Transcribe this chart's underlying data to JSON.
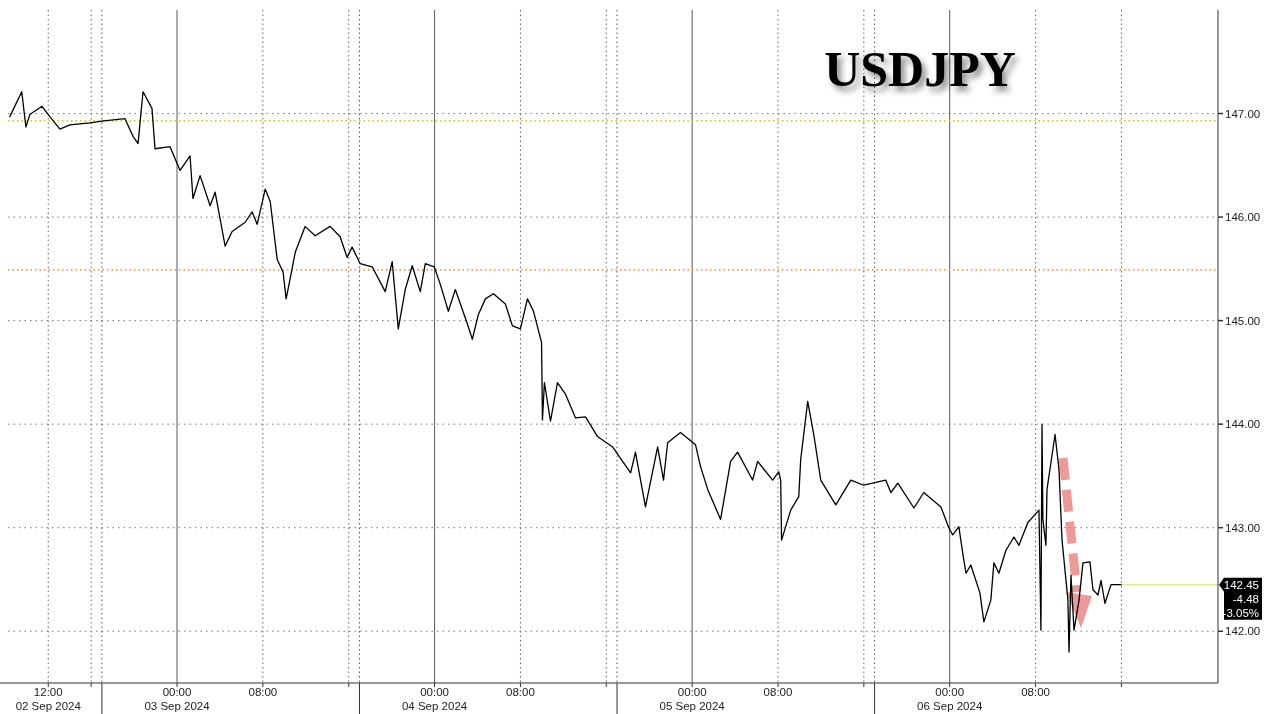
{
  "chart_data": {
    "type": "line",
    "title": "USDJPY",
    "x": [
      "2024-09-02T08:25",
      "2024-09-02T09:32",
      "2024-09-02T09:55",
      "2024-09-02T10:17",
      "2024-09-02T11:25",
      "2024-09-02T12:09",
      "2024-09-02T13:05",
      "2024-09-02T14:01",
      "2024-09-02T15:53",
      "2024-09-02T17:11",
      "2024-09-02T19:09",
      "2024-09-02T19:54",
      "2024-09-02T20:22",
      "2024-09-02T20:50",
      "2024-09-02T21:40",
      "2024-09-02T21:57",
      "2024-09-02T23:21",
      "2024-09-03T00:17",
      "2024-09-03T01:13",
      "2024-09-03T01:29",
      "2024-09-03T02:09",
      "2024-09-03T03:05",
      "2024-09-03T03:33",
      "2024-09-03T04:01",
      "2024-09-03T04:29",
      "2024-09-03T05:08",
      "2024-09-03T06:21",
      "2024-09-03T07:00",
      "2024-09-03T07:28",
      "2024-09-03T08:13",
      "2024-09-03T08:41",
      "2024-09-03T09:20",
      "2024-09-03T09:53",
      "2024-09-03T10:10",
      "2024-09-03T10:32",
      "2024-09-03T11:01",
      "2024-09-03T11:56",
      "2024-09-03T12:52",
      "2024-09-03T14:16",
      "2024-09-03T15:12",
      "2024-09-03T15:51",
      "2024-09-03T16:19",
      "2024-09-03T17:04",
      "2024-09-03T18:11",
      "2024-09-03T19:24",
      "2024-09-03T20:03",
      "2024-09-03T20:37",
      "2024-09-03T21:16",
      "2024-09-03T21:55",
      "2024-09-03T22:40",
      "2024-09-03T23:08",
      "2024-09-03T23:58",
      "2024-09-04T00:32",
      "2024-09-04T01:17",
      "2024-09-04T01:56",
      "2024-09-04T03:03",
      "2024-09-04T03:31",
      "2024-09-04T04:05",
      "2024-09-04T04:44",
      "2024-09-04T05:29",
      "2024-09-04T06:36",
      "2024-09-04T07:15",
      "2024-09-04T08:00",
      "2024-09-04T08:39",
      "2024-09-04T09:13",
      "2024-09-04T09:58",
      "2024-09-04T10:03",
      "2024-09-04T10:14",
      "2024-09-04T10:48",
      "2024-09-04T11:27",
      "2024-09-04T12:12",
      "2024-09-04T13:08",
      "2024-09-04T14:04",
      "2024-09-04T15:11",
      "2024-09-04T16:35",
      "2024-09-04T18:16",
      "2024-09-04T18:43",
      "2024-09-04T19:39",
      "2024-09-04T20:47",
      "2024-09-04T21:20",
      "2024-09-04T21:43",
      "2024-09-04T22:55",
      "2024-09-05T00:19",
      "2024-09-05T00:47",
      "2024-09-05T01:27",
      "2024-09-05T02:39",
      "2024-09-05T03:35",
      "2024-09-05T04:14",
      "2024-09-05T05:38",
      "2024-09-05T06:06",
      "2024-09-05T07:30",
      "2024-09-05T08:04",
      "2024-09-05T08:15",
      "2024-09-05T08:20",
      "2024-09-05T09:11",
      "2024-09-05T09:56",
      "2024-09-05T10:07",
      "2024-09-05T10:46",
      "2024-09-05T11:20",
      "2024-09-05T11:59",
      "2024-09-05T13:23",
      "2024-09-05T14:47",
      "2024-09-05T15:59",
      "2024-09-05T18:02",
      "2024-09-05T18:31",
      "2024-09-05T19:10",
      "2024-09-05T20:40",
      "2024-09-05T21:35",
      "2024-09-05T23:11",
      "2024-09-05T23:55",
      "2024-09-06T00:17",
      "2024-09-06T00:51",
      "2024-09-06T01:14",
      "2024-09-06T01:31",
      "2024-09-06T01:58",
      "2024-09-06T02:49",
      "2024-09-06T03:11",
      "2024-09-06T03:50",
      "2024-09-06T04:07",
      "2024-09-06T04:35",
      "2024-09-06T05:14",
      "2024-09-06T05:59",
      "2024-09-06T06:27",
      "2024-09-06T07:17",
      "2024-09-06T08:19",
      "2024-09-06T08:30",
      "2024-09-06T08:36",
      "2024-09-06T08:41",
      "2024-09-06T08:58",
      "2024-09-06T09:04",
      "2024-09-06T09:49",
      "2024-09-06T10:11",
      "2024-09-06T10:28",
      "2024-09-06T11:01",
      "2024-09-06T11:07",
      "2024-09-06T11:18",
      "2024-09-06T11:35",
      "2024-09-06T12:03",
      "2024-09-06T12:25",
      "2024-09-06T13:04",
      "2024-09-06T13:21",
      "2024-09-06T13:49",
      "2024-09-06T14:06",
      "2024-09-06T14:28",
      "2024-09-06T15:02",
      "2024-09-06T15:58"
    ],
    "series": [
      {
        "color": "#000000",
        "values": [
          146.97,
          147.21,
          146.87,
          146.99,
          147.07,
          146.97,
          146.85,
          146.89,
          146.91,
          146.93,
          146.95,
          146.78,
          146.71,
          147.21,
          147.05,
          146.66,
          146.68,
          146.45,
          146.59,
          146.18,
          146.4,
          146.11,
          146.24,
          145.98,
          145.72,
          145.86,
          145.95,
          146.05,
          145.93,
          146.27,
          146.15,
          145.59,
          145.47,
          145.21,
          145.4,
          145.66,
          145.91,
          145.82,
          145.91,
          145.81,
          145.61,
          145.71,
          145.55,
          145.52,
          145.28,
          145.57,
          144.92,
          145.3,
          145.53,
          145.28,
          145.55,
          145.52,
          145.35,
          145.09,
          145.3,
          144.97,
          144.82,
          145.06,
          145.21,
          145.26,
          145.16,
          144.95,
          144.92,
          145.21,
          145.09,
          144.79,
          144.04,
          144.4,
          144.03,
          144.4,
          144.29,
          144.06,
          144.07,
          143.88,
          143.78,
          143.53,
          143.73,
          143.2,
          143.78,
          143.46,
          143.82,
          143.92,
          143.8,
          143.59,
          143.37,
          143.08,
          143.64,
          143.73,
          143.46,
          143.64,
          143.46,
          143.54,
          143.46,
          142.88,
          143.17,
          143.3,
          143.66,
          144.22,
          143.9,
          143.46,
          143.22,
          143.46,
          143.41,
          143.46,
          143.34,
          143.43,
          143.19,
          143.34,
          143.2,
          143.0,
          142.93,
          143.01,
          142.74,
          142.56,
          142.64,
          142.37,
          142.09,
          142.3,
          142.66,
          142.56,
          142.78,
          142.91,
          142.83,
          143.05,
          143.17,
          142.01,
          144.0,
          143.08,
          142.83,
          143.37,
          143.9,
          143.56,
          142.88,
          142.3,
          141.8,
          142.54,
          142.01,
          142.3,
          142.66,
          142.67,
          142.4,
          142.35,
          142.49,
          142.27,
          142.45,
          142.45
        ]
      }
    ],
    "xlim": [
      "2024-09-02T08:15",
      "2024-09-07T01:00"
    ],
    "xticks": [
      {
        "value": "2024-09-02T12:00",
        "label": "12:00\n02 Sep 2024"
      },
      {
        "value": "2024-09-02T16:00",
        "label": null
      },
      {
        "value": "2024-09-03T00:00",
        "label": "00:00\n03 Sep 2024"
      },
      {
        "value": "2024-09-03T08:00",
        "label": "08:00"
      },
      {
        "value": "2024-09-03T16:00",
        "label": null
      },
      {
        "value": "2024-09-04T00:00",
        "label": "00:00\n04 Sep 2024"
      },
      {
        "value": "2024-09-04T08:00",
        "label": "08:00"
      },
      {
        "value": "2024-09-04T16:00",
        "label": null
      },
      {
        "value": "2024-09-05T00:00",
        "label": "00:00\n05 Sep 2024"
      },
      {
        "value": "2024-09-05T08:00",
        "label": "08:00"
      },
      {
        "value": "2024-09-05T16:00",
        "label": null
      },
      {
        "value": "2024-09-06T00:00",
        "label": "00:00\n06 Sep 2024"
      },
      {
        "value": "2024-09-06T08:00",
        "label": "08:00"
      },
      {
        "value": "2024-09-06T16:00",
        "label": null
      }
    ],
    "ylim": [
      141.5,
      148.0
    ],
    "yticks": [
      {
        "value": 142,
        "label": "142.00"
      },
      {
        "value": 143,
        "label": "143.00"
      },
      {
        "value": 144,
        "label": "144.00"
      },
      {
        "value": 145,
        "label": "145.00"
      },
      {
        "value": 146,
        "label": "146.00"
      },
      {
        "value": 147,
        "label": "147.00"
      }
    ],
    "grid": true,
    "ref_lines": [
      {
        "axis": "y",
        "value": 146.93,
        "color": "#d8c830",
        "line_style": "dotted"
      },
      {
        "axis": "y",
        "value": 145.49,
        "color": "#e8a030",
        "line_style": "dotted"
      },
      {
        "axis": "y",
        "value": 142.45,
        "label": "142.45",
        "color": "#ece49c",
        "line_style": "solid"
      },
      {
        "axis": "x",
        "value": "2024-09-02T17:00",
        "color": "#555555",
        "line_style": "dotted"
      },
      {
        "axis": "x",
        "value": "2024-09-03T17:00",
        "color": "#555555",
        "line_style": "dotted"
      },
      {
        "axis": "x",
        "value": "2024-09-04T17:00",
        "color": "#555555",
        "line_style": "dotted"
      },
      {
        "axis": "x",
        "value": "2024-09-05T17:00",
        "color": "#555555",
        "line_style": "dotted"
      }
    ],
    "annotations": [
      "-4.48",
      "-3.05%"
    ]
  }
}
